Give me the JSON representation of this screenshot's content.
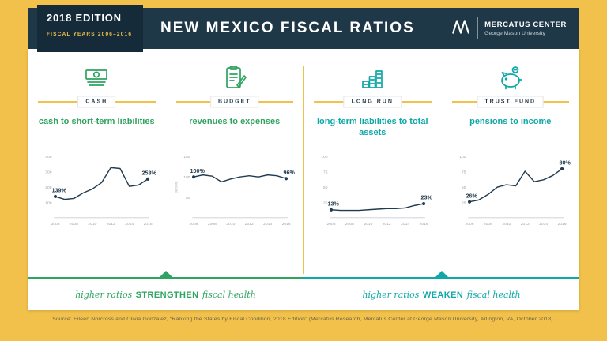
{
  "header": {
    "edition": "2018 EDITION",
    "fiscal_years": "FISCAL YEARS 2006–2016",
    "title": "NEW MEXICO FISCAL RATIOS",
    "logo": {
      "name": "MERCATUS CENTER",
      "subtitle": "George Mason University"
    }
  },
  "colors": {
    "background_yellow": "#F2C14B",
    "header_navy": "#1F3848",
    "edition_navy": "#152B3A",
    "accent_green": "#2FA360",
    "accent_teal": "#0FA7A7",
    "line_navy": "#223B4F"
  },
  "chart_data": [
    {
      "type": "line",
      "badge": "CASH",
      "icon": "cash-icon",
      "title": "cash to short-term liabilities",
      "accent": "#2FA360",
      "x": [
        2006,
        2007,
        2008,
        2009,
        2010,
        2011,
        2012,
        2013,
        2014,
        2015,
        2016
      ],
      "values": [
        139,
        120,
        126,
        162,
        188,
        230,
        328,
        322,
        205,
        214,
        253
      ],
      "ylim": [
        0,
        400
      ],
      "yticks": [
        400,
        300,
        200,
        100
      ],
      "xticks": [
        2006,
        2008,
        2010,
        2012,
        2014,
        2016
      ],
      "start_label": "139%",
      "end_label": "253%"
    },
    {
      "type": "line",
      "badge": "BUDGET",
      "icon": "budget-icon",
      "title": "revenues to expenses",
      "accent": "#2FA360",
      "ylabel": "percent",
      "x": [
        2006,
        2007,
        2008,
        2009,
        2010,
        2011,
        2012,
        2013,
        2014,
        2015,
        2016
      ],
      "values": [
        100,
        105,
        102,
        88,
        95,
        100,
        103,
        100,
        105,
        103,
        96
      ],
      "ylim": [
        0,
        150
      ],
      "yticks": [
        150,
        100,
        50
      ],
      "xticks": [
        2006,
        2008,
        2010,
        2012,
        2014,
        2016
      ],
      "start_label": "100%",
      "end_label": "96%"
    },
    {
      "type": "line",
      "badge": "LONG RUN",
      "icon": "long-run-icon",
      "title": "long-term liabilities to total assets",
      "accent": "#0FA7A7",
      "x": [
        2006,
        2007,
        2008,
        2009,
        2010,
        2011,
        2012,
        2013,
        2014,
        2015,
        2016
      ],
      "values": [
        13,
        12,
        12,
        12,
        13,
        14,
        15,
        15,
        16,
        20,
        23
      ],
      "ylim": [
        0,
        100
      ],
      "yticks": [
        100,
        75,
        50,
        25
      ],
      "xticks": [
        2006,
        2008,
        2010,
        2012,
        2014,
        2016
      ],
      "start_label": "13%",
      "end_label": "23%"
    },
    {
      "type": "line",
      "badge": "TRUST FUND",
      "icon": "trust-fund-icon",
      "title": "pensions to income",
      "accent": "#0FA7A7",
      "x": [
        2006,
        2007,
        2008,
        2009,
        2010,
        2011,
        2012,
        2013,
        2014,
        2015,
        2016
      ],
      "values": [
        26,
        29,
        38,
        50,
        54,
        52,
        76,
        59,
        62,
        69,
        80
      ],
      "ylim": [
        0,
        100
      ],
      "yticks": [
        100,
        75,
        50,
        25
      ],
      "xticks": [
        2006,
        2008,
        2010,
        2012,
        2014,
        2016
      ],
      "start_label": "26%",
      "end_label": "80%"
    }
  ],
  "bottom": {
    "left": {
      "prefix": "higher ratios",
      "verb": "STRENGTHEN",
      "suffix": "fiscal health"
    },
    "right": {
      "prefix": "higher ratios",
      "verb": "WEAKEN",
      "suffix": "fiscal health"
    }
  },
  "source": "Source: Eileen Norcross and Olivia Gonzalez, “Ranking the States by Fiscal Condition, 2018 Edition” (Mercatus Research, Mercatus Center at George Mason University, Arlington, VA, October 2018)."
}
